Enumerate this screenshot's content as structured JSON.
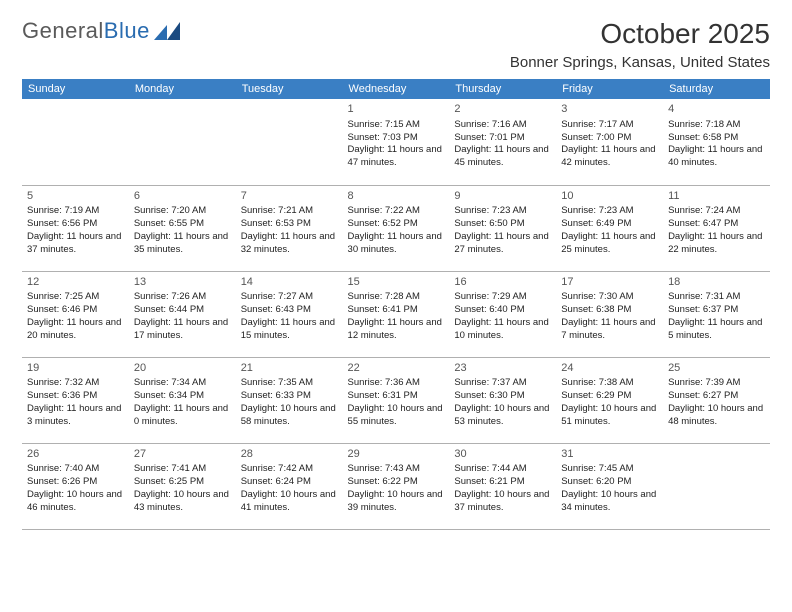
{
  "logo": {
    "text1": "General",
    "text2": "Blue"
  },
  "title": "October 2025",
  "location": "Bonner Springs, Kansas, United States",
  "colors": {
    "header_bg": "#3a7fc4",
    "header_text": "#ffffff",
    "row_divider": "#2a5a8a",
    "cell_border": "#b0b0b0",
    "logo_gray": "#5a5a5a",
    "logo_blue": "#2a6cb0"
  },
  "typography": {
    "title_fontsize": 28,
    "location_fontsize": 15,
    "header_fontsize": 11,
    "cell_fontsize": 9.5,
    "daynum_fontsize": 11
  },
  "day_headers": [
    "Sunday",
    "Monday",
    "Tuesday",
    "Wednesday",
    "Thursday",
    "Friday",
    "Saturday"
  ],
  "weeks": [
    [
      null,
      null,
      null,
      {
        "n": "1",
        "sr": "7:15 AM",
        "ss": "7:03 PM",
        "dl": "11 hours and 47 minutes."
      },
      {
        "n": "2",
        "sr": "7:16 AM",
        "ss": "7:01 PM",
        "dl": "11 hours and 45 minutes."
      },
      {
        "n": "3",
        "sr": "7:17 AM",
        "ss": "7:00 PM",
        "dl": "11 hours and 42 minutes."
      },
      {
        "n": "4",
        "sr": "7:18 AM",
        "ss": "6:58 PM",
        "dl": "11 hours and 40 minutes."
      }
    ],
    [
      {
        "n": "5",
        "sr": "7:19 AM",
        "ss": "6:56 PM",
        "dl": "11 hours and 37 minutes."
      },
      {
        "n": "6",
        "sr": "7:20 AM",
        "ss": "6:55 PM",
        "dl": "11 hours and 35 minutes."
      },
      {
        "n": "7",
        "sr": "7:21 AM",
        "ss": "6:53 PM",
        "dl": "11 hours and 32 minutes."
      },
      {
        "n": "8",
        "sr": "7:22 AM",
        "ss": "6:52 PM",
        "dl": "11 hours and 30 minutes."
      },
      {
        "n": "9",
        "sr": "7:23 AM",
        "ss": "6:50 PM",
        "dl": "11 hours and 27 minutes."
      },
      {
        "n": "10",
        "sr": "7:23 AM",
        "ss": "6:49 PM",
        "dl": "11 hours and 25 minutes."
      },
      {
        "n": "11",
        "sr": "7:24 AM",
        "ss": "6:47 PM",
        "dl": "11 hours and 22 minutes."
      }
    ],
    [
      {
        "n": "12",
        "sr": "7:25 AM",
        "ss": "6:46 PM",
        "dl": "11 hours and 20 minutes."
      },
      {
        "n": "13",
        "sr": "7:26 AM",
        "ss": "6:44 PM",
        "dl": "11 hours and 17 minutes."
      },
      {
        "n": "14",
        "sr": "7:27 AM",
        "ss": "6:43 PM",
        "dl": "11 hours and 15 minutes."
      },
      {
        "n": "15",
        "sr": "7:28 AM",
        "ss": "6:41 PM",
        "dl": "11 hours and 12 minutes."
      },
      {
        "n": "16",
        "sr": "7:29 AM",
        "ss": "6:40 PM",
        "dl": "11 hours and 10 minutes."
      },
      {
        "n": "17",
        "sr": "7:30 AM",
        "ss": "6:38 PM",
        "dl": "11 hours and 7 minutes."
      },
      {
        "n": "18",
        "sr": "7:31 AM",
        "ss": "6:37 PM",
        "dl": "11 hours and 5 minutes."
      }
    ],
    [
      {
        "n": "19",
        "sr": "7:32 AM",
        "ss": "6:36 PM",
        "dl": "11 hours and 3 minutes."
      },
      {
        "n": "20",
        "sr": "7:34 AM",
        "ss": "6:34 PM",
        "dl": "11 hours and 0 minutes."
      },
      {
        "n": "21",
        "sr": "7:35 AM",
        "ss": "6:33 PM",
        "dl": "10 hours and 58 minutes."
      },
      {
        "n": "22",
        "sr": "7:36 AM",
        "ss": "6:31 PM",
        "dl": "10 hours and 55 minutes."
      },
      {
        "n": "23",
        "sr": "7:37 AM",
        "ss": "6:30 PM",
        "dl": "10 hours and 53 minutes."
      },
      {
        "n": "24",
        "sr": "7:38 AM",
        "ss": "6:29 PM",
        "dl": "10 hours and 51 minutes."
      },
      {
        "n": "25",
        "sr": "7:39 AM",
        "ss": "6:27 PM",
        "dl": "10 hours and 48 minutes."
      }
    ],
    [
      {
        "n": "26",
        "sr": "7:40 AM",
        "ss": "6:26 PM",
        "dl": "10 hours and 46 minutes."
      },
      {
        "n": "27",
        "sr": "7:41 AM",
        "ss": "6:25 PM",
        "dl": "10 hours and 43 minutes."
      },
      {
        "n": "28",
        "sr": "7:42 AM",
        "ss": "6:24 PM",
        "dl": "10 hours and 41 minutes."
      },
      {
        "n": "29",
        "sr": "7:43 AM",
        "ss": "6:22 PM",
        "dl": "10 hours and 39 minutes."
      },
      {
        "n": "30",
        "sr": "7:44 AM",
        "ss": "6:21 PM",
        "dl": "10 hours and 37 minutes."
      },
      {
        "n": "31",
        "sr": "7:45 AM",
        "ss": "6:20 PM",
        "dl": "10 hours and 34 minutes."
      },
      null
    ]
  ],
  "labels": {
    "sunrise": "Sunrise: ",
    "sunset": "Sunset: ",
    "daylight": "Daylight: "
  }
}
